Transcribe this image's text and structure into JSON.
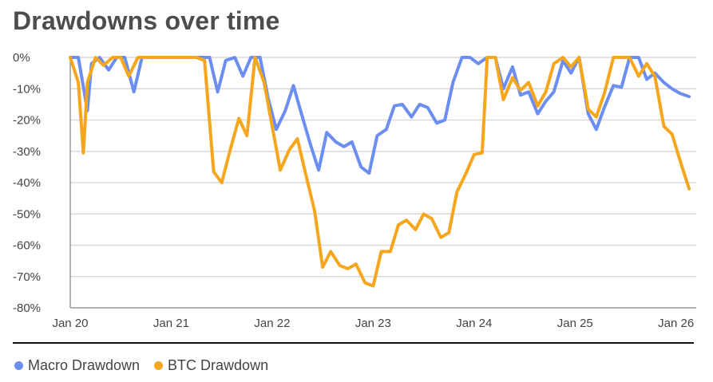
{
  "colors": {
    "macro": "#6c8ef0",
    "btc": "#f5a61c",
    "grid": "#d9d9d9",
    "axis": "#999999"
  },
  "chart_data": {
    "type": "line",
    "title": "Drawdowns over time",
    "xlabel": "",
    "ylabel": "",
    "x_ticks": [
      "Jan 20",
      "Jan 21",
      "Jan 22",
      "Jan 23",
      "Jan 24",
      "Jan 25",
      "Jan 26"
    ],
    "y_ticks": [
      "0%",
      "-10%",
      "-20%",
      "-30%",
      "-40%",
      "-50%",
      "-60%",
      "-70%",
      "-80%"
    ],
    "ylim": [
      -80,
      0
    ],
    "xlim": [
      2020.0,
      2026.2
    ],
    "grid": true,
    "legend_position": "bottom",
    "series": [
      {
        "name": "Macro Drawdown",
        "color": "#6c8ef0",
        "x": [
          2020.0,
          2020.08,
          2020.17,
          2020.21,
          2020.29,
          2020.38,
          2020.46,
          2020.54,
          2020.63,
          2020.71,
          2020.79,
          2020.88,
          2020.96,
          2021.04,
          2021.13,
          2021.21,
          2021.29,
          2021.38,
          2021.46,
          2021.54,
          2021.63,
          2021.71,
          2021.79,
          2021.88,
          2021.96,
          2022.04,
          2022.13,
          2022.21,
          2022.29,
          2022.38,
          2022.46,
          2022.54,
          2022.63,
          2022.71,
          2022.79,
          2022.88,
          2022.96,
          2023.04,
          2023.13,
          2023.21,
          2023.29,
          2023.38,
          2023.46,
          2023.54,
          2023.63,
          2023.71,
          2023.79,
          2023.88,
          2023.96,
          2024.04,
          2024.13,
          2024.21,
          2024.29,
          2024.38,
          2024.46,
          2024.54,
          2024.63,
          2024.71,
          2024.79,
          2024.88,
          2024.96,
          2025.04,
          2025.13,
          2025.21,
          2025.29,
          2025.38,
          2025.46,
          2025.54,
          2025.63,
          2025.71,
          2025.79,
          2025.88,
          2025.96,
          2026.04,
          2026.13
        ],
        "values": [
          0,
          0,
          -17,
          -2,
          0,
          -4,
          0,
          0,
          -11,
          0,
          0,
          0,
          0,
          0,
          0,
          0,
          0,
          0,
          -11,
          -1,
          0,
          -6,
          0,
          0,
          -13,
          -23,
          -17,
          -9,
          -18,
          -28,
          -36,
          -24,
          -27,
          -28.5,
          -27,
          -35,
          -37,
          -25,
          -23,
          -15.5,
          -15,
          -19,
          -15,
          -16,
          -21,
          -20,
          -8,
          0,
          0,
          -2,
          0,
          0,
          -10,
          -3,
          -12,
          -11,
          -18,
          -14,
          -11,
          -1,
          -5,
          0,
          -18,
          -23,
          -16,
          -9,
          -9.5,
          0,
          0,
          -7,
          -5,
          -8,
          -10,
          -11.5,
          -12.5
        ]
      },
      {
        "name": "BTC Drawdown",
        "color": "#f5a61c",
        "x": [
          2020.0,
          2020.08,
          2020.13,
          2020.17,
          2020.25,
          2020.33,
          2020.42,
          2020.5,
          2020.58,
          2020.67,
          2020.75,
          2020.83,
          2020.92,
          2021.0,
          2021.08,
          2021.17,
          2021.25,
          2021.33,
          2021.42,
          2021.5,
          2021.58,
          2021.67,
          2021.75,
          2021.83,
          2021.92,
          2022.0,
          2022.08,
          2022.17,
          2022.25,
          2022.33,
          2022.42,
          2022.5,
          2022.58,
          2022.67,
          2022.75,
          2022.83,
          2022.92,
          2023.0,
          2023.08,
          2023.17,
          2023.25,
          2023.33,
          2023.42,
          2023.5,
          2023.58,
          2023.67,
          2023.75,
          2023.83,
          2023.92,
          2024.0,
          2024.08,
          2024.13,
          2024.17,
          2024.21,
          2024.29,
          2024.38,
          2024.46,
          2024.54,
          2024.63,
          2024.71,
          2024.79,
          2024.88,
          2024.96,
          2025.04,
          2025.13,
          2025.21,
          2025.29,
          2025.38,
          2025.46,
          2025.54,
          2025.63,
          2025.71,
          2025.79,
          2025.88,
          2025.96,
          2026.04,
          2026.13
        ],
        "values": [
          0,
          -8,
          -30.5,
          -8,
          0,
          -2.5,
          0,
          0,
          -6,
          0,
          0,
          0,
          0,
          0,
          0,
          0,
          0,
          -1,
          -36.5,
          -40,
          -30,
          -19.5,
          -25,
          0,
          -8,
          -22,
          -36,
          -29.5,
          -26,
          -37,
          -49,
          -67,
          -62,
          -66.5,
          -67.5,
          -66,
          -72,
          -73,
          -62,
          -62,
          -53.5,
          -52,
          -55,
          -50,
          -51.5,
          -57.5,
          -56,
          -43,
          -37,
          -31,
          -30.5,
          0,
          0,
          0,
          -13.5,
          -6.5,
          -10.5,
          -8,
          -15.5,
          -11,
          -2,
          0,
          -3,
          0,
          -16.5,
          -19,
          -11.5,
          0,
          0,
          0,
          -6,
          -2,
          -6,
          -22,
          -24.5,
          -33,
          -42
        ]
      }
    ]
  },
  "legend": [
    {
      "label": "Macro Drawdown",
      "color": "#6c8ef0"
    },
    {
      "label": "BTC Drawdown",
      "color": "#f5a61c"
    }
  ]
}
